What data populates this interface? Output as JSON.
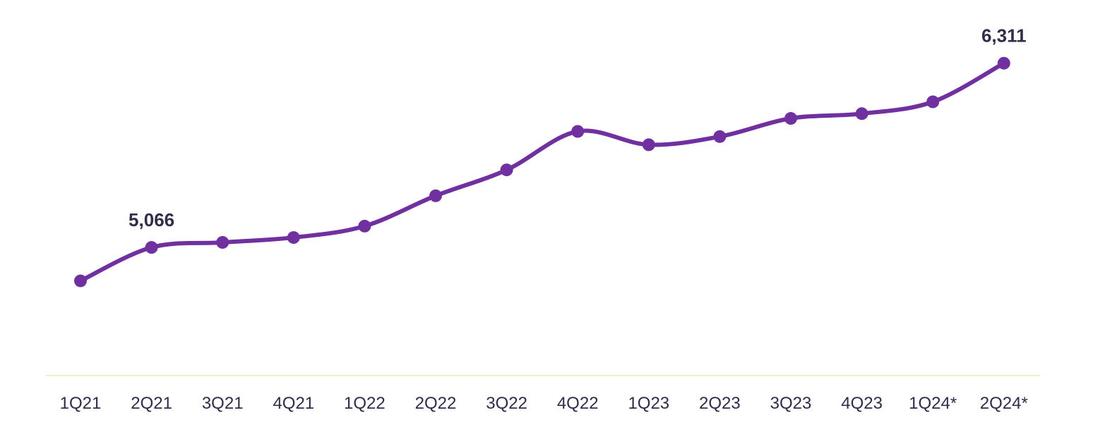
{
  "chart_data": {
    "type": "line",
    "categories": [
      "1Q21",
      "2Q21",
      "3Q21",
      "4Q21",
      "1Q22",
      "2Q22",
      "3Q22",
      "4Q22",
      "1Q23",
      "2Q23",
      "3Q23",
      "4Q23",
      "1Q24*",
      "2Q24*"
    ],
    "series": [
      {
        "values": [
          4840,
          5066,
          5100,
          5133,
          5210,
          5415,
          5590,
          5850,
          5760,
          5815,
          5938,
          5970,
          6050,
          6311
        ]
      }
    ],
    "data_labels": [
      {
        "index": 1,
        "text": "5,066"
      },
      {
        "index": 13,
        "text": "6,311"
      }
    ],
    "ylim": [
      4200,
      6500
    ],
    "grid": false,
    "line_color": "#7030a0",
    "marker_color": "#7030a0",
    "axis_color": "#f2efcf",
    "text_color": "#2e2e4a"
  }
}
